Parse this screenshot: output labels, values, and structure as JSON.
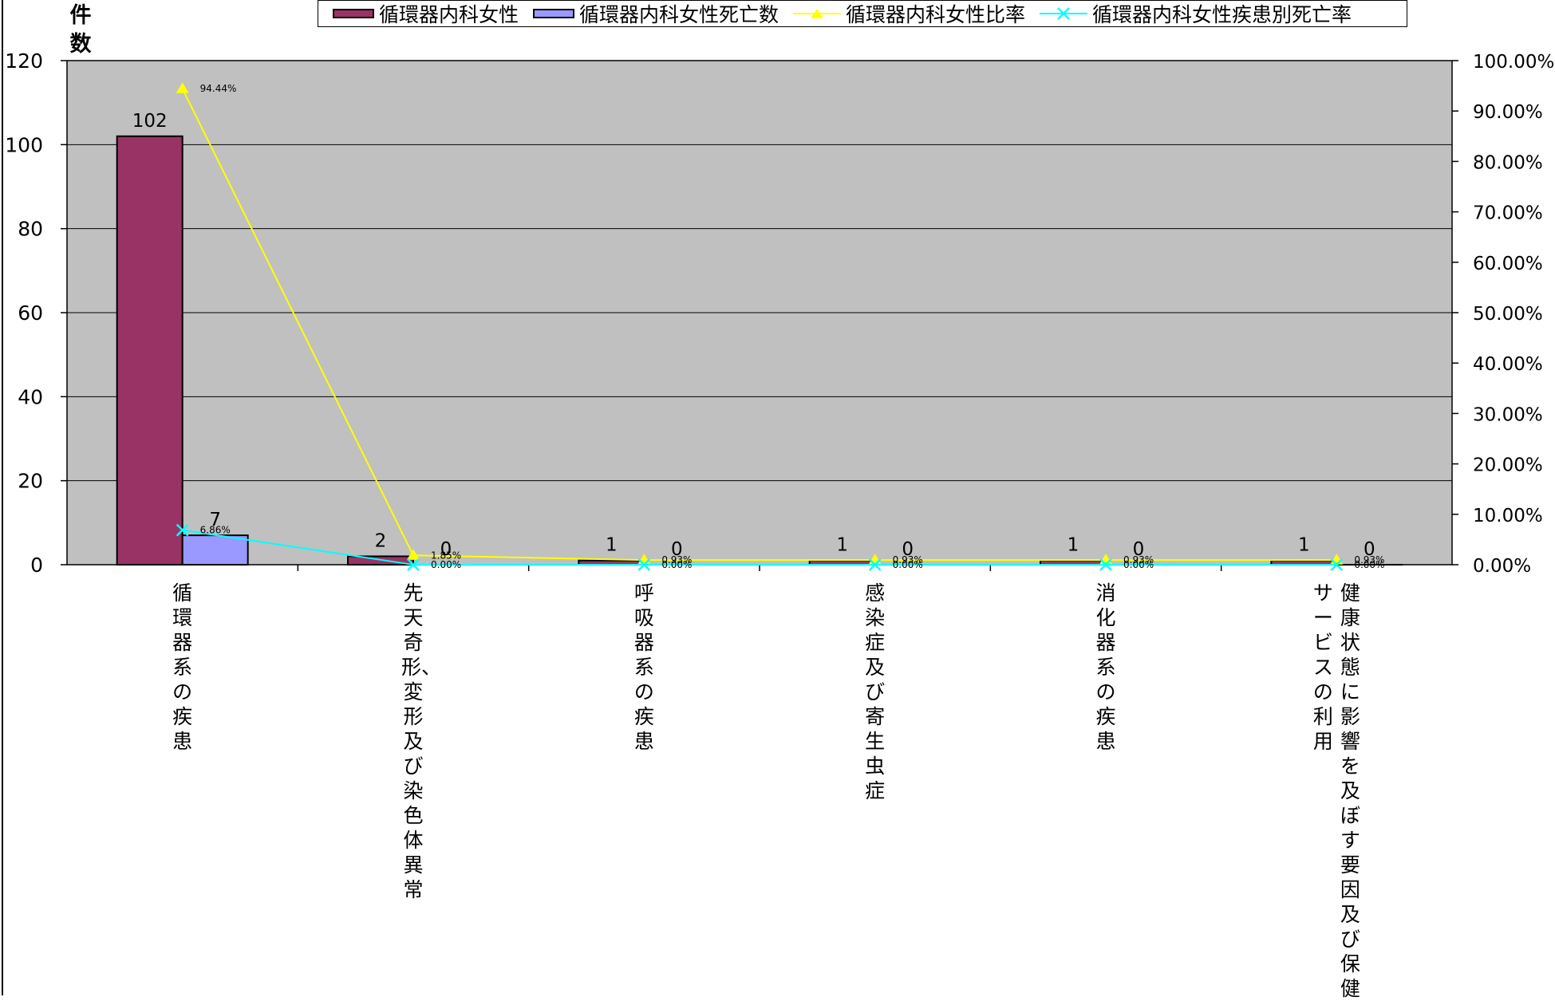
{
  "chart_data": {
    "type": "bar",
    "ylabel": "件数",
    "ylim": [
      0,
      120
    ],
    "y_ticks": [
      "0",
      "20",
      "40",
      "60",
      "80",
      "100",
      "120"
    ],
    "y2lim": [
      0,
      100
    ],
    "y2_ticks": [
      "0.00%",
      "10.00%",
      "20.00%",
      "30.00%",
      "40.00%",
      "50.00%",
      "60.00%",
      "70.00%",
      "80.00%",
      "90.00%",
      "100.00%"
    ],
    "categories": [
      "循環器系の疾患",
      "先天奇形、変形及び染色体異常",
      "呼吸器系の疾患",
      "感染症及び寄生虫症",
      "消化器系の疾患",
      "健康状態に影響を及ぼす要因及び保健サービスの利用"
    ],
    "category_lines": [
      [
        "循環器系の疾患"
      ],
      [
        "先天奇形、変形及び染色体異常"
      ],
      [
        "呼吸器系の疾患"
      ],
      [
        "感染症及び寄生虫症"
      ],
      [
        "消化器系の疾患"
      ],
      [
        "健康状態に影響を及ぼす要因及び保健",
        "サービスの利用"
      ]
    ],
    "series": [
      {
        "name": "循環器内科女性",
        "kind": "bar",
        "axis": "left",
        "color": "#993366",
        "values": [
          102,
          2,
          1,
          1,
          1,
          1
        ],
        "labels": [
          "102",
          "2",
          "1",
          "1",
          "1",
          "1"
        ]
      },
      {
        "name": "循環器内科女性死亡数",
        "kind": "bar",
        "axis": "left",
        "color": "#9999FF",
        "values": [
          7,
          0,
          0,
          0,
          0,
          0
        ],
        "labels": [
          "7",
          "0",
          "0",
          "0",
          "0",
          "0"
        ]
      },
      {
        "name": "循環器内科女性比率",
        "kind": "line",
        "axis": "right",
        "color": "#FFFF00",
        "marker": "triangle",
        "values": [
          94.44,
          1.85,
          0.93,
          0.93,
          0.93,
          0.93
        ],
        "labels": [
          "94.44%",
          "1.85%",
          "0.93%",
          "0.93%",
          "0.93%",
          "0.93%"
        ]
      },
      {
        "name": "循環器内科女性疾患別死亡率",
        "kind": "line",
        "axis": "right",
        "color": "#00FFFF",
        "marker": "x",
        "values": [
          6.86,
          0,
          0,
          0,
          0,
          0
        ],
        "labels": [
          "6.86%",
          "0.00%",
          "0.00%",
          "0.00%",
          "0.00%",
          "0.00%"
        ]
      }
    ],
    "plot_background": "#C0C0C0",
    "grid": true,
    "legend_position": "top"
  }
}
